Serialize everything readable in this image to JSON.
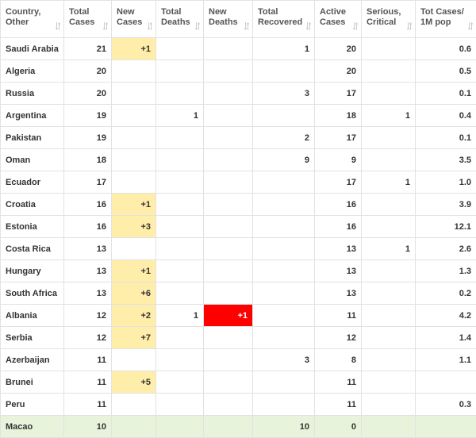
{
  "table": {
    "columns": [
      [
        "Country,",
        "Other"
      ],
      [
        "Total",
        "Cases"
      ],
      [
        "New",
        "Cases"
      ],
      [
        "Total",
        "Deaths"
      ],
      [
        "New",
        "Deaths"
      ],
      [
        "Total",
        "Recovered"
      ],
      [
        "Active",
        "Cases"
      ],
      [
        "Serious,",
        "Critical"
      ],
      [
        "Tot Cases/",
        "1M pop"
      ]
    ],
    "rows": [
      [
        "Saudi Arabia",
        "21",
        "+1",
        null,
        null,
        "1",
        "20",
        null,
        "0.6"
      ],
      [
        "Algeria",
        "20",
        null,
        null,
        null,
        null,
        "20",
        null,
        "0.5"
      ],
      [
        "Russia",
        "20",
        null,
        null,
        null,
        "3",
        "17",
        null,
        "0.1"
      ],
      [
        "Argentina",
        "19",
        null,
        "1",
        null,
        null,
        "18",
        "1",
        "0.4"
      ],
      [
        "Pakistan",
        "19",
        null,
        null,
        null,
        "2",
        "17",
        null,
        "0.1"
      ],
      [
        "Oman",
        "18",
        null,
        null,
        null,
        "9",
        "9",
        null,
        "3.5"
      ],
      [
        "Ecuador",
        "17",
        null,
        null,
        null,
        null,
        "17",
        "1",
        "1.0"
      ],
      [
        "Croatia",
        "16",
        "+1",
        null,
        null,
        null,
        "16",
        null,
        "3.9"
      ],
      [
        "Estonia",
        "16",
        "+3",
        null,
        null,
        null,
        "16",
        null,
        "12.1"
      ],
      [
        "Costa Rica",
        "13",
        null,
        null,
        null,
        null,
        "13",
        "1",
        "2.6"
      ],
      [
        "Hungary",
        "13",
        "+1",
        null,
        null,
        null,
        "13",
        null,
        "1.3"
      ],
      [
        "South Africa",
        "13",
        "+6",
        null,
        null,
        null,
        "13",
        null,
        "0.2"
      ],
      [
        "Albania",
        "12",
        "+2",
        "1",
        "+1",
        null,
        "11",
        null,
        "4.2"
      ],
      [
        "Serbia",
        "12",
        "+7",
        null,
        null,
        null,
        "12",
        null,
        "1.4"
      ],
      [
        "Azerbaijan",
        "11",
        null,
        null,
        null,
        "3",
        "8",
        null,
        "1.1"
      ],
      [
        "Brunei",
        "11",
        "+5",
        null,
        null,
        null,
        "11",
        null,
        null
      ],
      [
        "Peru",
        "11",
        null,
        null,
        null,
        null,
        "11",
        null,
        "0.3"
      ],
      [
        "Macao",
        "10",
        null,
        null,
        null,
        "10",
        "0",
        null,
        null
      ]
    ]
  }
}
